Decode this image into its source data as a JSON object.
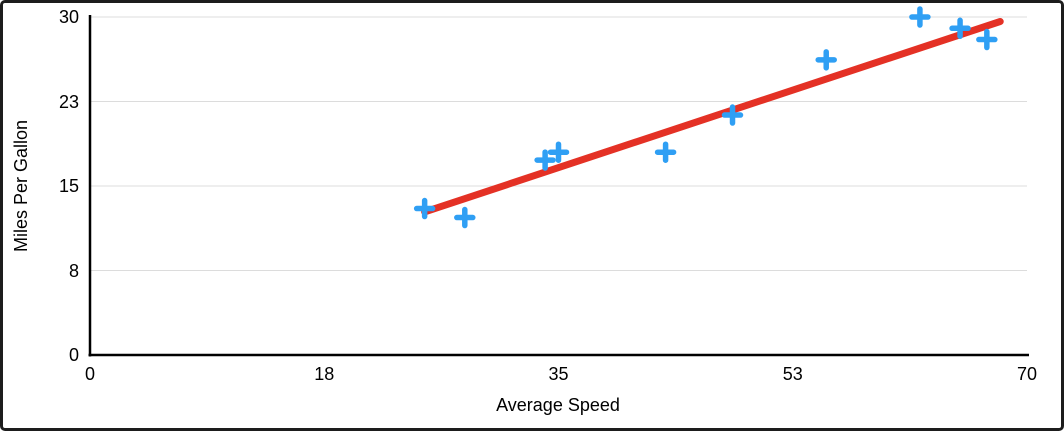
{
  "chart_data": {
    "type": "scatter",
    "title": "",
    "xlabel": "Average Speed",
    "ylabel": "Miles Per Gallon",
    "xlim": [
      0,
      70
    ],
    "ylim": [
      0,
      30
    ],
    "x_ticks": [
      {
        "value": 0,
        "label": "0"
      },
      {
        "value": 17.5,
        "label": "18"
      },
      {
        "value": 35,
        "label": "35"
      },
      {
        "value": 52.5,
        "label": "53"
      },
      {
        "value": 70,
        "label": "70"
      }
    ],
    "y_ticks": [
      {
        "value": 0,
        "label": "0"
      },
      {
        "value": 7.5,
        "label": "8"
      },
      {
        "value": 15,
        "label": "15"
      },
      {
        "value": 22.5,
        "label": "23"
      },
      {
        "value": 30,
        "label": "30"
      }
    ],
    "grid": "horizontal",
    "legend": "none",
    "series": [
      {
        "name": "Miles Per Gallon",
        "marker": "plus",
        "color": "#2f9ff4",
        "points": [
          {
            "x": 25,
            "y": 13
          },
          {
            "x": 28,
            "y": 12.2
          },
          {
            "x": 34,
            "y": 17.3
          },
          {
            "x": 35,
            "y": 18
          },
          {
            "x": 43,
            "y": 18
          },
          {
            "x": 48,
            "y": 21.3
          },
          {
            "x": 55,
            "y": 26.2
          },
          {
            "x": 62,
            "y": 30
          },
          {
            "x": 65,
            "y": 29
          },
          {
            "x": 67,
            "y": 28
          }
        ]
      }
    ],
    "trendline": {
      "type": "linear",
      "color": "#e43125",
      "x1": 25,
      "y1": 12.7,
      "x2": 68,
      "y2": 29.6
    },
    "colors": {
      "marker": "#2f9ff4",
      "trendline": "#e43125",
      "gridline": "#dcdcdc",
      "axis": "#000000",
      "text": "#000000",
      "background": "#ffffff",
      "frame_border": "#1d1d1d"
    }
  }
}
